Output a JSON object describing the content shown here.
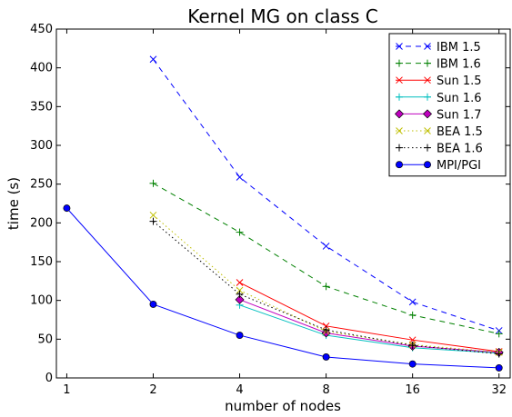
{
  "chart_data": {
    "type": "line",
    "title": "Kernel MG on class C",
    "xlabel": "number of nodes",
    "ylabel": "time (s)",
    "x_scale": "log2",
    "x_ticks": [
      1,
      2,
      4,
      8,
      16,
      32
    ],
    "xlim": [
      0.92,
      35
    ],
    "ylim": [
      0,
      450
    ],
    "y_ticks": [
      0,
      50,
      100,
      150,
      200,
      250,
      300,
      350,
      400,
      450
    ],
    "grid": false,
    "legend_position": "top-right",
    "series": [
      {
        "name": "IBM 1.5",
        "color": "#0000ff",
        "dash": "dashed",
        "marker": "x",
        "x": [
          2,
          4,
          8,
          16,
          32
        ],
        "y": [
          411,
          259,
          170,
          98,
          61
        ]
      },
      {
        "name": "IBM 1.6",
        "color": "#008000",
        "dash": "dashed",
        "marker": "+",
        "x": [
          2,
          4,
          8,
          16,
          32
        ],
        "y": [
          251,
          188,
          118,
          81,
          57
        ]
      },
      {
        "name": "Sun 1.5",
        "color": "#ff0000",
        "dash": "solid",
        "marker": "x",
        "x": [
          4,
          8,
          16,
          32
        ],
        "y": [
          123,
          67,
          49,
          34
        ]
      },
      {
        "name": "Sun 1.6",
        "color": "#00bfbf",
        "dash": "solid",
        "marker": "+",
        "x": [
          4,
          8,
          16,
          32
        ],
        "y": [
          94,
          55,
          39,
          32
        ]
      },
      {
        "name": "Sun 1.7",
        "color": "#bf00bf",
        "dash": "solid",
        "marker": "diamond",
        "x": [
          4,
          8,
          16,
          32
        ],
        "y": [
          101,
          58,
          41,
          33
        ]
      },
      {
        "name": "BEA 1.5",
        "color": "#bfbf00",
        "dash": "dotted",
        "marker": "x",
        "x": [
          2,
          4,
          8,
          16,
          32
        ],
        "y": [
          210,
          113,
          60,
          43,
          33
        ]
      },
      {
        "name": "BEA 1.6",
        "color": "#000000",
        "dash": "dotted",
        "marker": "+",
        "x": [
          2,
          4,
          8,
          16,
          32
        ],
        "y": [
          202,
          108,
          62,
          42,
          31
        ]
      },
      {
        "name": "MPI/PGI",
        "color": "#0000ff",
        "dash": "solid",
        "marker": "circle",
        "x": [
          1,
          2,
          4,
          8,
          16,
          32
        ],
        "y": [
          219,
          95,
          55,
          27,
          18,
          13
        ]
      }
    ]
  }
}
